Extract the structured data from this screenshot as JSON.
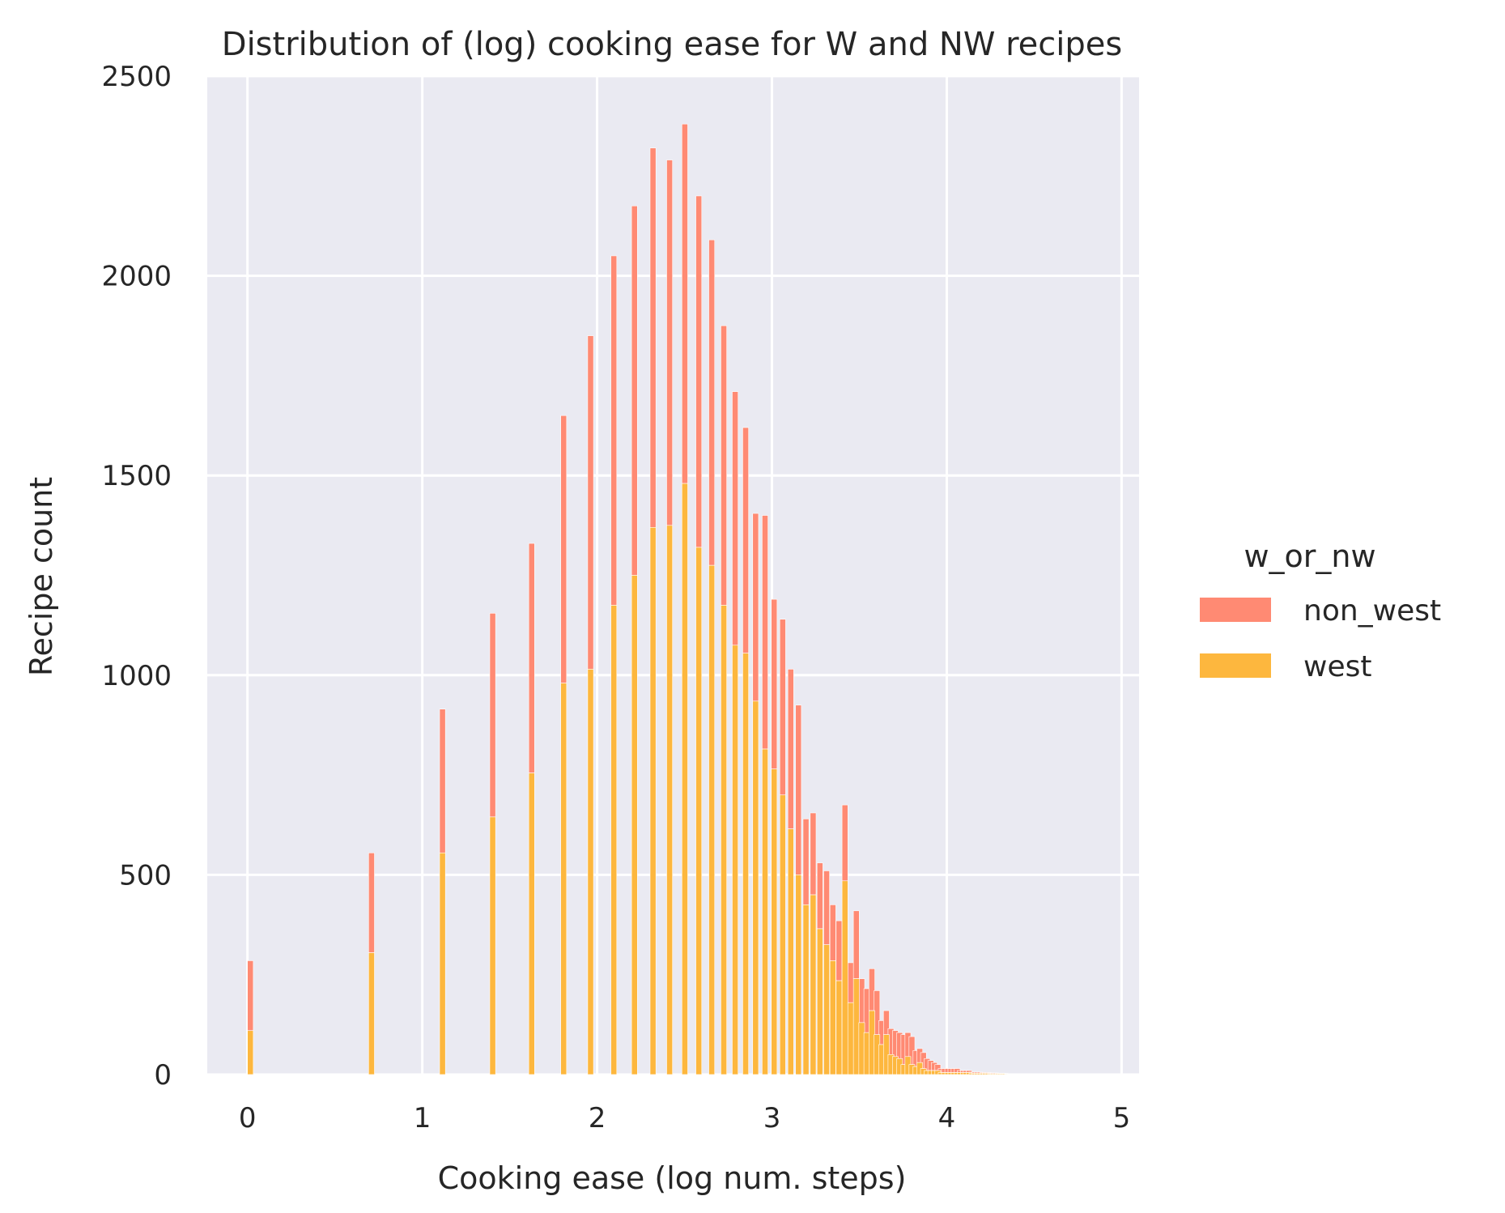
{
  "chart_data": {
    "type": "bar",
    "stacked": true,
    "title": "Distribution of (log) cooking ease for W and NW recipes",
    "xlabel": "Cooking ease (log num. steps)",
    "ylabel": "Recipe count",
    "xlim": [
      -0.23,
      5.1
    ],
    "ylim": [
      0,
      2500
    ],
    "xticks": [
      0,
      1,
      2,
      3,
      4,
      5
    ],
    "yticks": [
      0,
      500,
      1000,
      1500,
      2000,
      2500
    ],
    "grid": true,
    "bin_width": 0.0333,
    "legend": {
      "title": "w_or_nw",
      "placement": "right",
      "entries": [
        "non_west",
        "west"
      ]
    },
    "series": [
      {
        "name": "non_west",
        "color": "#ff8a73"
      },
      {
        "name": "west",
        "color": "#fdb73e"
      }
    ],
    "x": [
      0.0,
      0.693,
      1.099,
      1.386,
      1.609,
      1.792,
      1.946,
      2.079,
      2.197,
      2.303,
      2.398,
      2.485,
      2.565,
      2.639,
      2.708,
      2.773,
      2.833,
      2.89,
      2.944,
      2.996,
      3.045,
      3.091,
      3.135,
      3.178,
      3.219,
      3.258,
      3.296,
      3.332,
      3.367,
      3.401,
      3.434,
      3.466,
      3.497,
      3.526,
      3.555,
      3.584,
      3.611,
      3.638,
      3.664,
      3.689,
      3.714,
      3.738,
      3.761,
      3.784,
      3.807,
      3.829,
      3.85,
      3.871,
      3.892,
      3.912,
      3.932,
      3.951,
      3.97,
      3.989,
      4.007,
      4.025,
      4.043,
      4.06,
      4.078,
      4.094,
      4.111,
      4.127,
      4.143,
      4.159,
      4.174,
      4.19,
      4.205,
      4.22,
      4.234,
      4.248,
      4.263,
      4.277,
      4.29,
      4.304,
      4.317,
      4.331,
      4.344,
      4.357,
      4.369
    ],
    "west": [
      110,
      305,
      555,
      645,
      755,
      980,
      1015,
      1175,
      1250,
      1370,
      1375,
      1480,
      1320,
      1275,
      1175,
      1075,
      1055,
      935,
      815,
      765,
      700,
      615,
      500,
      425,
      450,
      365,
      325,
      285,
      235,
      485,
      180,
      240,
      130,
      105,
      160,
      100,
      75,
      100,
      50,
      45,
      40,
      25,
      45,
      25,
      20,
      30,
      15,
      10,
      10,
      10,
      10,
      5,
      5,
      5,
      5,
      5,
      5,
      5,
      5,
      5,
      5,
      3,
      3,
      3,
      3,
      3,
      3,
      3,
      2,
      2,
      2,
      2,
      2,
      2,
      2,
      1,
      1,
      1,
      1
    ],
    "non_west": [
      175,
      250,
      360,
      510,
      575,
      670,
      835,
      875,
      925,
      950,
      915,
      900,
      880,
      815,
      700,
      635,
      565,
      470,
      585,
      425,
      440,
      400,
      425,
      215,
      205,
      165,
      185,
      140,
      150,
      190,
      100,
      170,
      110,
      110,
      105,
      110,
      60,
      60,
      65,
      65,
      65,
      75,
      60,
      70,
      40,
      35,
      40,
      30,
      25,
      20,
      15,
      10,
      10,
      10,
      10,
      10,
      10,
      5,
      5,
      5,
      5,
      3,
      3,
      3,
      3,
      2,
      2,
      2,
      2,
      2,
      2,
      1,
      1,
      1,
      1,
      1,
      1,
      1,
      1
    ]
  }
}
